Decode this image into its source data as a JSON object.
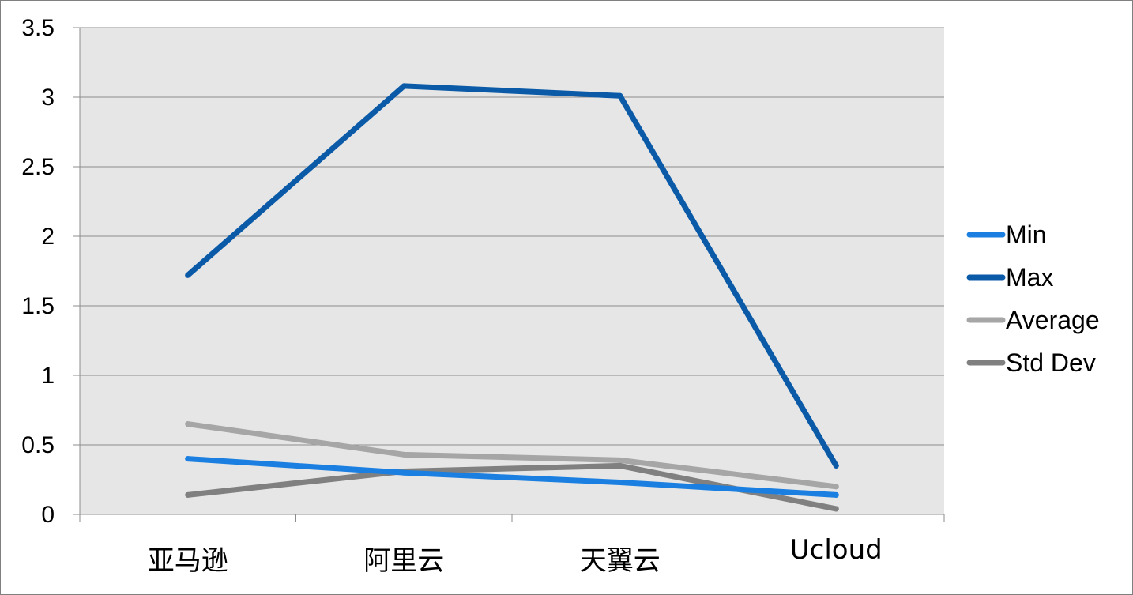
{
  "chart_data": {
    "type": "line",
    "title": "",
    "xlabel": "",
    "ylabel": "",
    "categories": [
      "亚马逊",
      "阿里云",
      "天翼云",
      "Ucloud"
    ],
    "ylim": [
      0,
      3.5
    ],
    "yticks": [
      "0",
      "0.5",
      "1",
      "1.5",
      "2",
      "2.5",
      "3",
      "3.5"
    ],
    "grid": true,
    "plot_background": "#e6e6e6",
    "legend_position": "right",
    "series": [
      {
        "name": "Min",
        "color": "#1a7fe0",
        "values": [
          0.4,
          0.3,
          0.23,
          0.14
        ]
      },
      {
        "name": "Max",
        "color": "#0a5aa8",
        "values": [
          1.72,
          3.08,
          3.01,
          0.35
        ]
      },
      {
        "name": "Average",
        "color": "#a6a6a6",
        "values": [
          0.65,
          0.43,
          0.39,
          0.2
        ]
      },
      {
        "name": "Std Dev",
        "color": "#808080",
        "values": [
          0.14,
          0.31,
          0.35,
          0.04
        ]
      }
    ]
  }
}
